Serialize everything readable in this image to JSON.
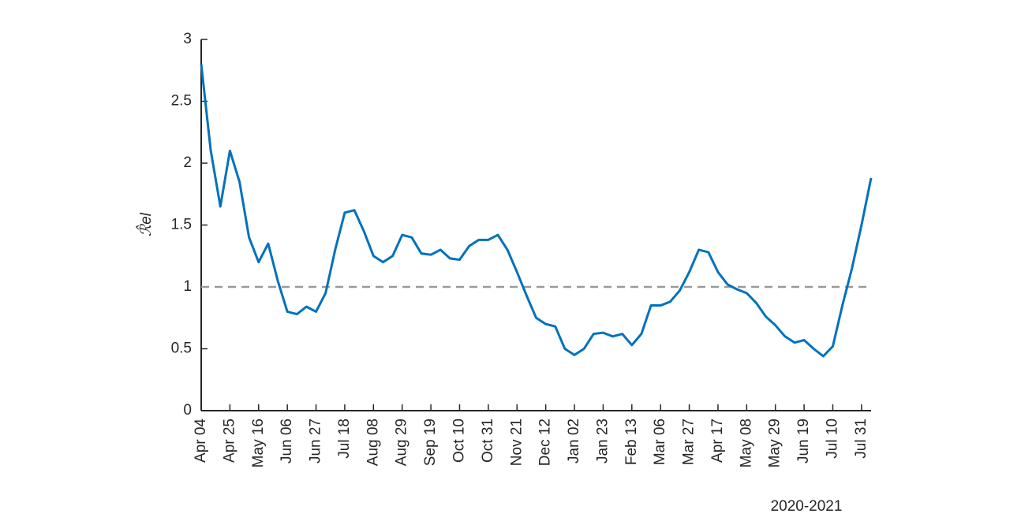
{
  "chart_data": {
    "type": "line",
    "xlabel": "2020-2021",
    "ylabel": "ℛ̂el",
    "categories": [
      "Apr 04",
      null,
      null,
      "Apr 25",
      null,
      null,
      "May 16",
      null,
      null,
      "Jun 06",
      null,
      null,
      "Jun 27",
      null,
      null,
      "Jul 18",
      null,
      null,
      "Aug 08",
      null,
      null,
      "Aug 29",
      null,
      null,
      "Sep 19",
      null,
      null,
      "Oct 10",
      null,
      null,
      "Oct 31",
      null,
      null,
      "Nov 21",
      null,
      null,
      "Dec 12",
      null,
      null,
      "Jan 02",
      null,
      null,
      "Jan 23",
      null,
      null,
      "Feb 13",
      null,
      null,
      "Mar 06",
      null,
      null,
      "Mar 27",
      null,
      null,
      "Apr 17",
      null,
      null,
      "May 08",
      null,
      null,
      "May 29",
      null,
      null,
      "Jun 19",
      null,
      null,
      "Jul 10",
      null,
      null,
      "Jul 31",
      null
    ],
    "series": [
      {
        "color": "#0072bd",
        "values": [
          2.8,
          2.1,
          1.65,
          2.1,
          1.85,
          1.4,
          1.2,
          1.35,
          1.05,
          0.8,
          0.78,
          0.84,
          0.8,
          0.95,
          1.3,
          1.6,
          1.62,
          1.45,
          1.25,
          1.2,
          1.25,
          1.42,
          1.4,
          1.27,
          1.26,
          1.3,
          1.23,
          1.22,
          1.33,
          1.38,
          1.38,
          1.42,
          1.3,
          1.12,
          0.93,
          0.75,
          0.7,
          0.68,
          0.5,
          0.45,
          0.5,
          0.62,
          0.63,
          0.6,
          0.62,
          0.53,
          0.62,
          0.85,
          0.85,
          0.88,
          0.97,
          1.12,
          1.3,
          1.28,
          1.12,
          1.02,
          0.98,
          0.95,
          0.87,
          0.76,
          0.69,
          0.6,
          0.55,
          0.57,
          0.5,
          0.44,
          0.52,
          0.85,
          1.15,
          1.5,
          1.88
        ]
      }
    ],
    "reference_line": {
      "value": 1,
      "color": "#999999"
    },
    "ylim": [
      0,
      3
    ],
    "yticks": [
      0,
      0.5,
      1,
      1.5,
      2,
      2.5,
      3
    ],
    "grid": false
  }
}
